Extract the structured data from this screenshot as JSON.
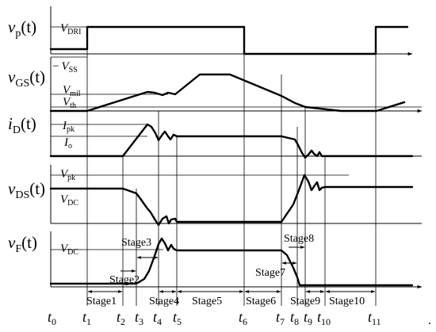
{
  "signals": [
    {
      "key": "vp",
      "label_main": "v",
      "label_sub": "p",
      "label_arg": "(t)"
    },
    {
      "key": "vgs",
      "label_main": "v",
      "label_sub": "GS",
      "label_arg": "(t)"
    },
    {
      "key": "id",
      "label_main": "i",
      "label_sub": "D",
      "label_arg": "(t)"
    },
    {
      "key": "vds",
      "label_main": "v",
      "label_sub": "DS",
      "label_arg": "(t)"
    },
    {
      "key": "vf",
      "label_main": "v",
      "label_sub": "F",
      "label_arg": "(t)"
    }
  ],
  "levels": {
    "vdri": {
      "main": "V",
      "sub": "DRI"
    },
    "vss": {
      "prefix": "−",
      "main": "V",
      "sub": "SS"
    },
    "vmil": {
      "main": "V",
      "sub": "mil"
    },
    "vth": {
      "main": "V",
      "sub": "th"
    },
    "ipk": {
      "main": "I",
      "sub": "pk"
    },
    "io": {
      "main": "I",
      "sub": "o"
    },
    "vpk": {
      "main": "V",
      "sub": "pk"
    },
    "vdc_ds": {
      "main": "V",
      "sub": "DC"
    },
    "vdc_f": {
      "main": "V",
      "sub": "DC"
    }
  },
  "time_labels": [
    {
      "main": "t",
      "sub": "0"
    },
    {
      "main": "t",
      "sub": "1"
    },
    {
      "main": "t",
      "sub": "2"
    },
    {
      "main": "t",
      "sub": "3"
    },
    {
      "main": "t",
      "sub": "4"
    },
    {
      "main": "t",
      "sub": "5"
    },
    {
      "main": "t",
      "sub": "6"
    },
    {
      "main": "t",
      "sub": "7"
    },
    {
      "main": "t",
      "sub": "8"
    },
    {
      "main": "t",
      "sub": "9"
    },
    {
      "main": "t",
      "sub": "10"
    },
    {
      "main": "t",
      "sub": "11"
    }
  ],
  "stages": [
    "Stage1",
    "Stage2",
    "Stage3",
    "Stage4",
    "Stage5",
    "Stage6",
    "Stage7",
    "Stage8",
    "Stage9",
    "Stage10"
  ],
  "trailing_mark": "."
}
